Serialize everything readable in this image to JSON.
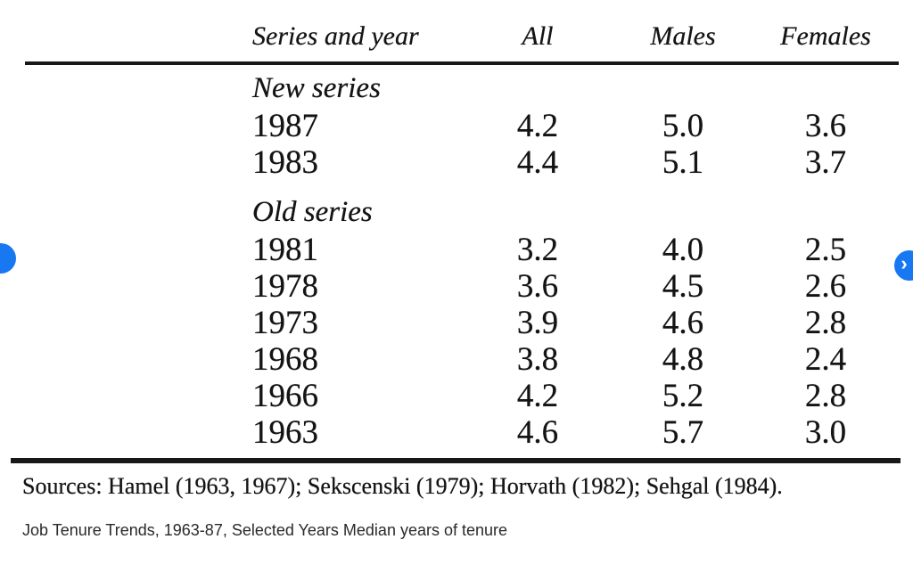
{
  "viewer": {
    "accent_color": "#1778f2",
    "prev_button": {
      "glyph": "‹"
    },
    "next_button": {
      "glyph": "›"
    }
  },
  "table": {
    "columns": [
      "Series and year",
      "All",
      "Males",
      "Females"
    ],
    "groups": [
      {
        "label": "New series",
        "rows": [
          {
            "year": "1987",
            "all": "4.2",
            "males": "5.0",
            "females": "3.6"
          },
          {
            "year": "1983",
            "all": "4.4",
            "males": "5.1",
            "females": "3.7"
          }
        ]
      },
      {
        "label": "Old series",
        "rows": [
          {
            "year": "1981",
            "all": "3.2",
            "males": "4.0",
            "females": "2.5"
          },
          {
            "year": "1978",
            "all": "3.6",
            "males": "4.5",
            "females": "2.6"
          },
          {
            "year": "1973",
            "all": "3.9",
            "males": "4.6",
            "females": "2.8"
          },
          {
            "year": "1968",
            "all": "3.8",
            "males": "4.8",
            "females": "2.4"
          },
          {
            "year": "1966",
            "all": "4.2",
            "males": "5.2",
            "females": "2.8"
          },
          {
            "year": "1963",
            "all": "4.6",
            "males": "5.7",
            "females": "3.0"
          }
        ]
      }
    ],
    "sources": "Sources: Hamel (1963, 1967); Sekscenski (1979); Horvath (1982); Sehgal (1984)."
  },
  "caption": "Job Tenure Trends, 1963-87, Selected Years Median years of tenure"
}
